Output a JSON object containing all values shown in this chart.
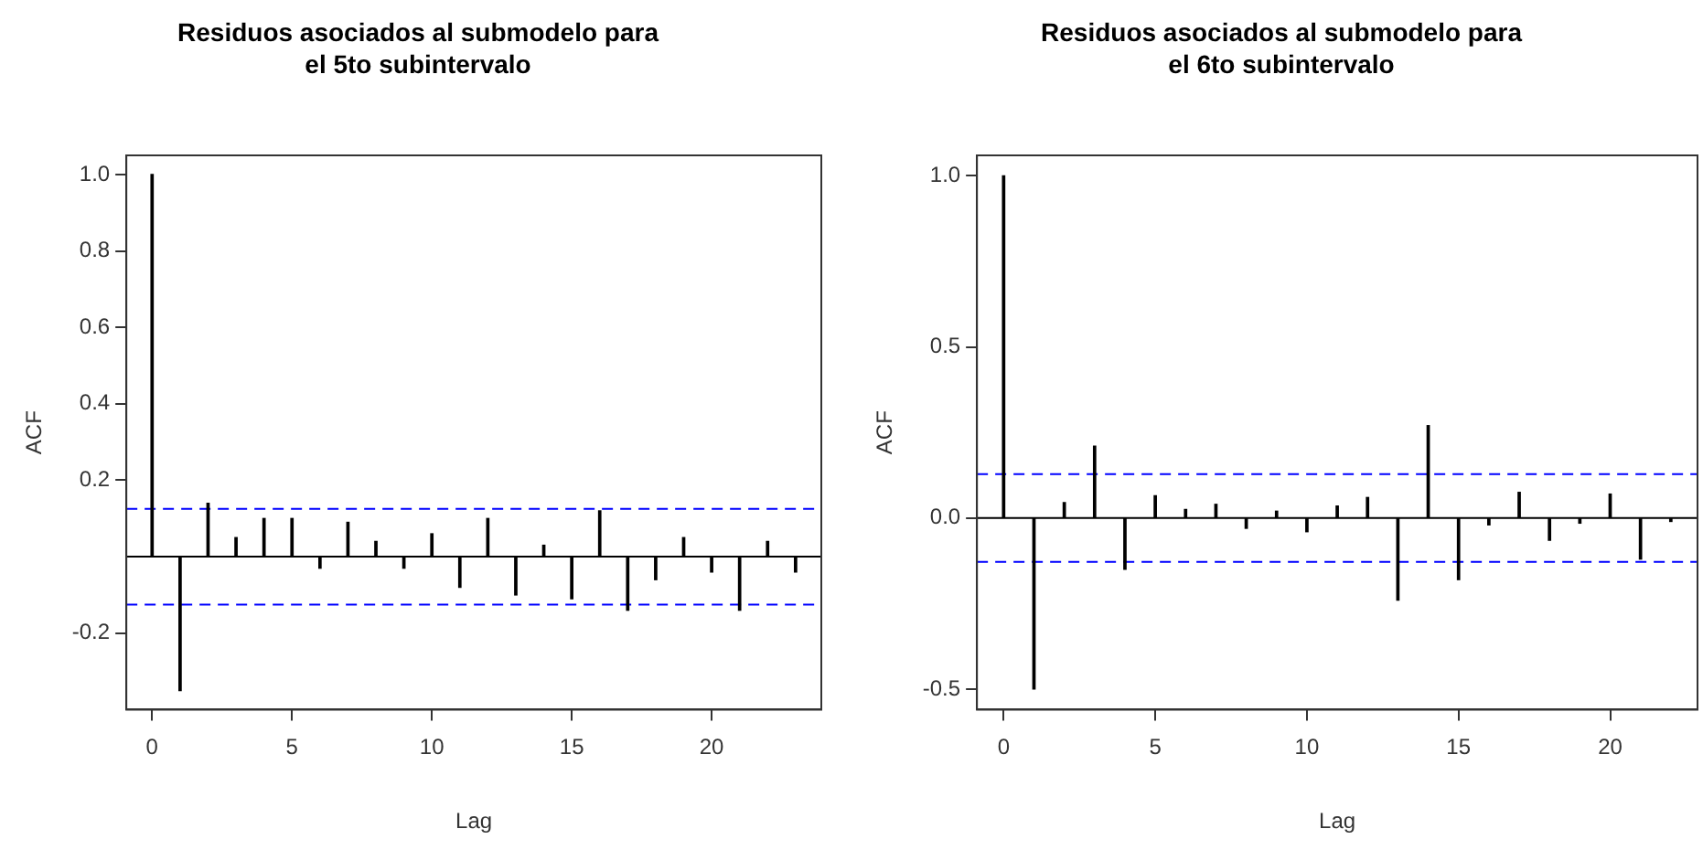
{
  "chart_data": [
    {
      "type": "bar",
      "title": "Residuos asociados al submodelo para\nel 5to subintervalo",
      "xlabel": "Lag",
      "ylabel": "ACF",
      "color": "#000000",
      "grid": false,
      "legend": false,
      "x": [
        0,
        1,
        2,
        3,
        4,
        5,
        6,
        7,
        8,
        9,
        10,
        11,
        12,
        13,
        14,
        15,
        16,
        17,
        18,
        19,
        20,
        21,
        22,
        23
      ],
      "values": [
        1.0,
        -0.35,
        0.14,
        0.05,
        0.1,
        0.1,
        -0.03,
        0.09,
        0.04,
        -0.03,
        0.06,
        -0.08,
        0.1,
        -0.1,
        0.03,
        -0.11,
        0.12,
        -0.14,
        -0.06,
        0.05,
        -0.04,
        -0.14,
        0.04,
        -0.04
      ],
      "xlim": [
        -0.92,
        23.92
      ],
      "xticks": [
        0,
        5,
        10,
        15,
        20
      ],
      "ylim": [
        -0.4,
        1.05
      ],
      "yticks": [
        {
          "value": -0.2,
          "label": "-0.2"
        },
        {
          "value": 0.2,
          "label": "0.2"
        },
        {
          "value": 0.4,
          "label": "0.4"
        },
        {
          "value": 0.6,
          "label": "0.6"
        },
        {
          "value": 0.8,
          "label": "0.8"
        },
        {
          "value": 1,
          "label": "1.0"
        }
      ],
      "ref_lines": [
        {
          "axis": "y",
          "value": 0,
          "color": "#000000",
          "line_style": "solid"
        },
        {
          "axis": "y",
          "value": 0.125,
          "color": "#0000ff",
          "line_style": "dashed"
        },
        {
          "axis": "y",
          "value": -0.125,
          "color": "#0000ff",
          "line_style": "dashed"
        }
      ]
    },
    {
      "type": "bar",
      "title": "Residuos asociados al submodelo para\nel 6to subintervalo",
      "xlabel": "Lag",
      "ylabel": "ACF",
      "color": "#000000",
      "grid": false,
      "legend": false,
      "x": [
        0,
        1,
        2,
        3,
        4,
        5,
        6,
        7,
        8,
        9,
        10,
        11,
        12,
        13,
        14,
        15,
        16,
        17,
        18,
        19,
        20,
        21,
        22
      ],
      "values": [
        1.0,
        -0.5,
        0.045,
        0.21,
        -0.15,
        0.065,
        0.025,
        0.04,
        -0.03,
        0.02,
        -0.04,
        0.035,
        0.06,
        -0.24,
        0.27,
        -0.18,
        -0.02,
        0.075,
        -0.065,
        -0.015,
        0.07,
        -0.12,
        -0.01
      ],
      "xlim": [
        -0.88,
        22.88
      ],
      "xticks": [
        0,
        5,
        10,
        15,
        20
      ],
      "ylim": [
        -0.56,
        1.06
      ],
      "yticks": [
        {
          "value": -0.5,
          "label": "-0.5"
        },
        {
          "value": 0,
          "label": "0.0"
        },
        {
          "value": 0.5,
          "label": "0.5"
        },
        {
          "value": 1,
          "label": "1.0"
        }
      ],
      "ref_lines": [
        {
          "axis": "y",
          "value": 0,
          "color": "#000000",
          "line_style": "solid"
        },
        {
          "axis": "y",
          "value": 0.128,
          "color": "#0000ff",
          "line_style": "dashed"
        },
        {
          "axis": "y",
          "value": -0.128,
          "color": "#0000ff",
          "line_style": "dashed"
        }
      ]
    }
  ]
}
